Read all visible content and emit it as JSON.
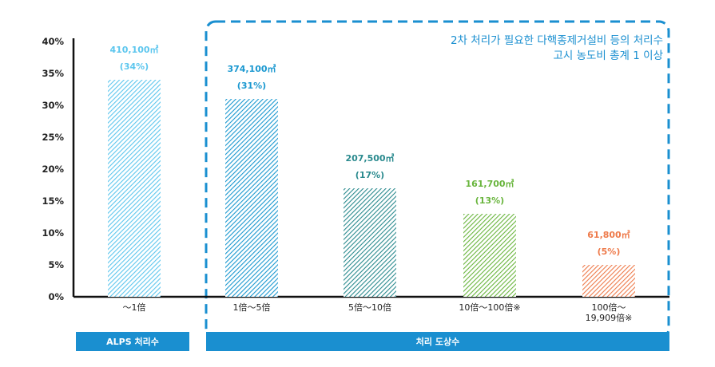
{
  "chart_data": {
    "type": "bar",
    "categories": [
      "～1倍",
      "1倍～5倍",
      "5倍～10倍",
      "10倍～100倍※",
      "100倍～\n19,909倍※"
    ],
    "values": [
      34,
      31,
      17,
      13,
      5
    ],
    "value_labels": [
      "410,100㎥",
      "374,100㎥",
      "207,500㎥",
      "161,700㎥",
      "61,800㎥"
    ],
    "percent_labels": [
      "(34%)",
      "(31%)",
      "(17%)",
      "(13%)",
      "(5%)"
    ],
    "colors": [
      "#5cc6ee",
      "#1a98d0",
      "#2a8a8e",
      "#69b53d",
      "#ee7a4a"
    ],
    "yticks": [
      "0%",
      "5%",
      "10%",
      "15%",
      "20%",
      "25%",
      "30%",
      "35%",
      "40%"
    ],
    "ylim": [
      0,
      40
    ],
    "title": "",
    "xlabel": "",
    "ylabel": "",
    "grid": false
  },
  "annotation": {
    "line1": "2차 처리가 필요한 다핵종제거설비 등의 처리수",
    "line2": "고시 농도비 총계 1 이상"
  },
  "bands": {
    "alps": "ALPS 처리수",
    "treatment": "처리 도상수"
  }
}
